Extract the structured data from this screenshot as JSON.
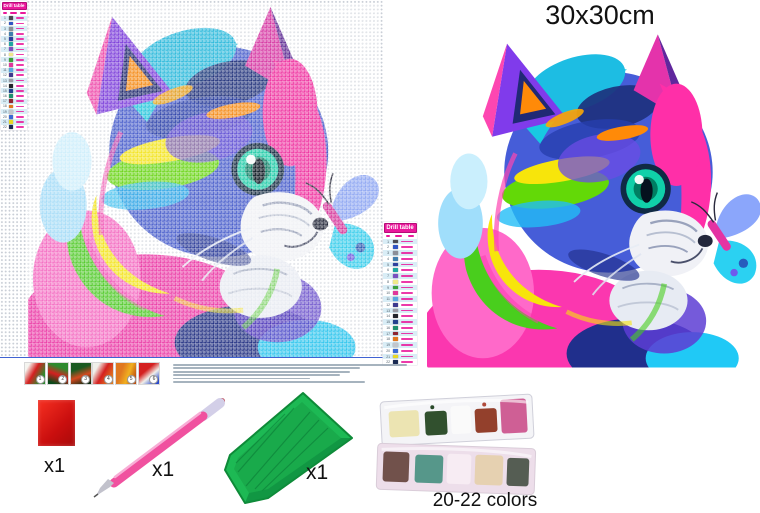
{
  "size_label": "30x30cm",
  "drill_table": {
    "title": "Drill table",
    "rows": [
      {
        "no": "1",
        "color": "#4a4a52"
      },
      {
        "no": "2",
        "color": "#2f55c4"
      },
      {
        "no": "3",
        "color": "#8a8f98"
      },
      {
        "no": "4",
        "color": "#3f7fae"
      },
      {
        "no": "5",
        "color": "#2e3f9e"
      },
      {
        "no": "6",
        "color": "#1fa7a2"
      },
      {
        "no": "7",
        "color": "#7a4fc0"
      },
      {
        "no": "8",
        "color": "#efe98a"
      },
      {
        "no": "9",
        "color": "#3aa13a"
      },
      {
        "no": "10",
        "color": "#e0389b"
      },
      {
        "no": "11",
        "color": "#58a8e0"
      },
      {
        "no": "12",
        "color": "#3d3a8e"
      },
      {
        "no": "13",
        "color": "#9a9aa2"
      },
      {
        "no": "14",
        "color": "#22242a"
      },
      {
        "no": "15",
        "color": "#23418e"
      },
      {
        "no": "16",
        "color": "#1e8f6e"
      },
      {
        "no": "17",
        "color": "#8e2430"
      },
      {
        "no": "18",
        "color": "#e07820"
      },
      {
        "no": "19",
        "color": "#c2c6cc"
      },
      {
        "no": "20",
        "color": "#3a6ad4"
      },
      {
        "no": "21",
        "color": "#e8d824"
      },
      {
        "no": "22",
        "color": "#1a2a52"
      }
    ]
  },
  "instructions": {
    "steps": [
      "1",
      "2",
      "3",
      "4",
      "5",
      "6"
    ]
  },
  "accessories": {
    "wax_qty": "x1",
    "pen_qty": "x1",
    "tray_qty": "x1",
    "drills_label": "20-22 colors"
  },
  "palette": {
    "table_header_bg": "#e9189b",
    "table_alt_row": "#d9edf6",
    "grid_border_blue": "#3f62d2",
    "tray_green": "#1db954",
    "wax_red": "#d01414",
    "pen_pink": "#f0519f"
  }
}
